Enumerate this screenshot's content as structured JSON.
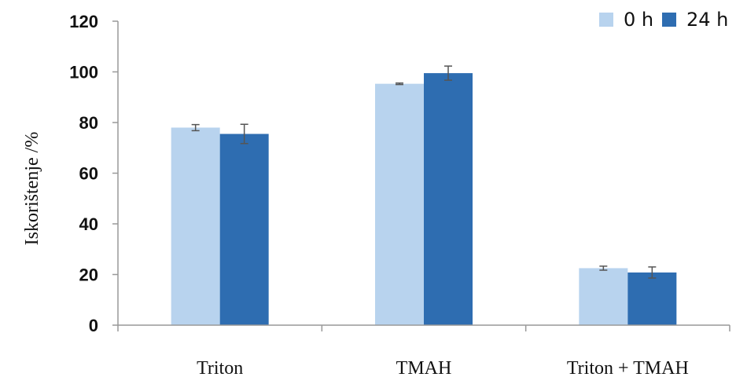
{
  "chart_data": {
    "type": "bar",
    "title": "",
    "xlabel": "",
    "ylabel": "Iskorištenje /%",
    "ylim": [
      0,
      120
    ],
    "yticks": [
      0,
      20,
      40,
      60,
      80,
      100,
      120
    ],
    "categories": [
      "Triton",
      "TMAH",
      "Triton + TMAH"
    ],
    "series": [
      {
        "name": "0 h",
        "color": "#b8d3ee",
        "values": [
          78,
          95.3,
          22.5
        ],
        "errors": [
          1.2,
          0.3,
          0.8
        ]
      },
      {
        "name": "24 h",
        "color": "#2e6db1",
        "values": [
          75.5,
          99.5,
          20.8
        ],
        "errors": [
          3.8,
          2.8,
          2.2
        ]
      }
    ],
    "grid": false,
    "legend_position": "top-right"
  }
}
